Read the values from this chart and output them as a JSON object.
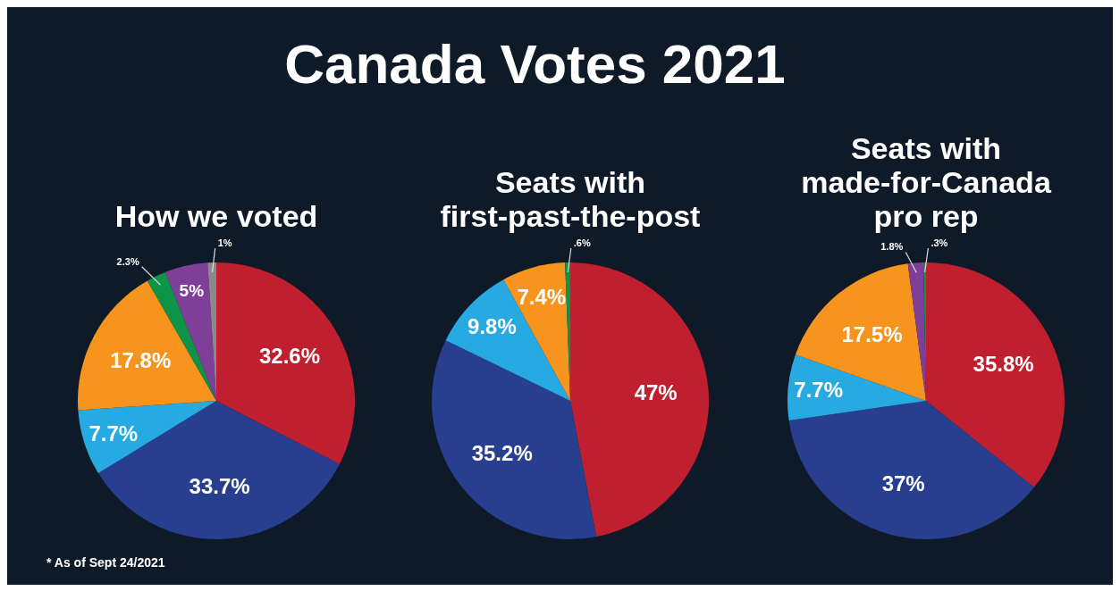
{
  "chart_data": [
    {
      "type": "other",
      "title": "Canada Votes 2021",
      "annotations": [
        "* As of Sept 24/2021"
      ]
    },
    {
      "type": "pie",
      "title": "How we voted",
      "categories": [
        null,
        null,
        null,
        null,
        null,
        null,
        null
      ],
      "values": [
        32.6,
        33.7,
        7.7,
        17.8,
        2.3,
        5,
        1
      ],
      "value_labels": [
        "32.6%",
        "33.7%",
        "7.7%",
        "17.8%",
        "2.3%",
        "5%",
        "1%"
      ],
      "colors": [
        "#c01f2f",
        "#283f8f",
        "#27a9e1",
        "#f7941d",
        "#0e9447",
        "#7f3f98",
        "#8a8a8a"
      ]
    },
    {
      "type": "pie",
      "title": "Seats with first-past-the-post",
      "categories": [
        null,
        null,
        null,
        null,
        null
      ],
      "values": [
        47,
        35.2,
        9.8,
        7.4,
        0.6
      ],
      "value_labels": [
        "47%",
        "35.2%",
        "9.8%",
        "7.4%",
        ".6%"
      ],
      "colors": [
        "#c01f2f",
        "#283f8f",
        "#27a9e1",
        "#f7941d",
        "#0e9447"
      ]
    },
    {
      "type": "pie",
      "title": "Seats with made-for-Canada pro rep",
      "categories": [
        null,
        null,
        null,
        null,
        null,
        null
      ],
      "values": [
        35.8,
        37,
        7.7,
        17.5,
        1.8,
        0.3
      ],
      "value_labels": [
        "35.8%",
        "37%",
        "7.7%",
        "17.5%",
        "1.8%",
        ".3%"
      ],
      "colors": [
        "#c01f2f",
        "#283f8f",
        "#27a9e1",
        "#f7941d",
        "#7f3f98",
        "#0e9447"
      ]
    }
  ]
}
